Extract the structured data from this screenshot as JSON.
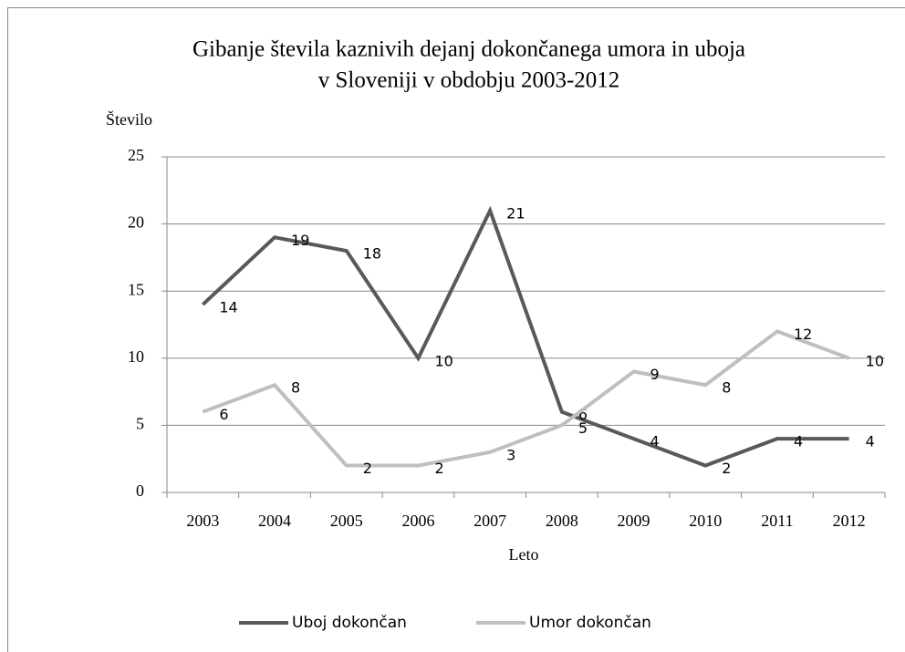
{
  "chart_data": {
    "type": "line",
    "title": [
      "Gibanje števila kaznivih  dejanj dokončanega umora in uboja",
      "v Sloveniji  v obdobju 2003-2012"
    ],
    "y_label": "Število",
    "x_label": "Leto",
    "categories": [
      "2003",
      "2004",
      "2005",
      "2006",
      "2007",
      "2008",
      "2009",
      "2010",
      "2011",
      "2012"
    ],
    "series": [
      {
        "name": "Uboj dokončan",
        "color": "#595959",
        "values": [
          14,
          19,
          18,
          10,
          21,
          6,
          4,
          2,
          4,
          4
        ]
      },
      {
        "name": "Umor dokončan",
        "color": "#bfbfbf",
        "values": [
          6,
          8,
          2,
          2,
          3,
          5,
          9,
          8,
          12,
          10
        ]
      }
    ],
    "ylim": [
      0,
      25
    ],
    "yticks": [
      0,
      5,
      10,
      15,
      20,
      25
    ],
    "grid": true,
    "legend": "bottom"
  }
}
